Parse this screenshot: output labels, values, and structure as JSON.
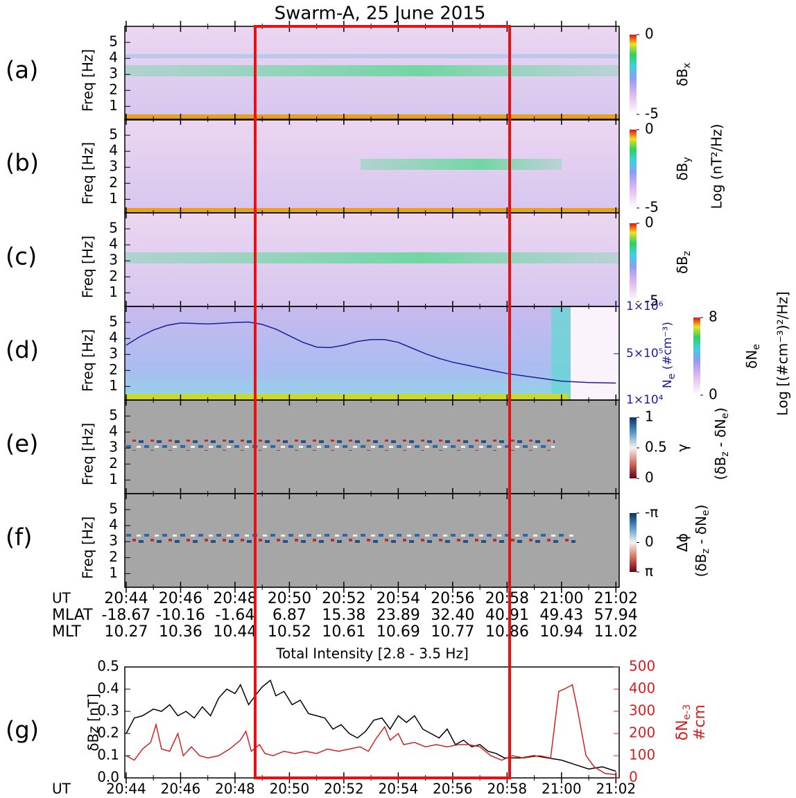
{
  "title": "Swarm-A,  25 June 2015",
  "time_axis": {
    "x_label": "UT",
    "xlim": [
      43.95,
      62.12
    ],
    "xticks": [
      {
        "value": 44,
        "label": "20:44"
      },
      {
        "value": 46,
        "label": "20:46"
      },
      {
        "value": 48,
        "label": "20:48"
      },
      {
        "value": 50,
        "label": "20:50"
      },
      {
        "value": 52,
        "label": "20:52"
      },
      {
        "value": 54,
        "label": "20:54"
      },
      {
        "value": 56,
        "label": "20:56"
      },
      {
        "value": 58,
        "label": "20:58"
      },
      {
        "value": 60,
        "label": "21:00"
      },
      {
        "value": 62,
        "label": "21:02"
      }
    ],
    "minor_xticks": [
      45,
      47,
      49,
      51,
      53,
      55,
      57,
      59,
      61
    ],
    "rows": [
      {
        "label": "MLAT",
        "values": [
          "-18.67",
          "-10.16",
          "-1.64",
          "6.87",
          "15.38",
          "23.89",
          "32.40",
          "40.91",
          "49.43",
          "57.94"
        ]
      },
      {
        "label": "MLT",
        "values": [
          "10.27",
          "10.36",
          "10.44",
          "10.52",
          "10.61",
          "10.69",
          "10.77",
          "10.86",
          "10.94",
          "11.02"
        ]
      }
    ]
  },
  "side_labels": {
    "magnetic": "Log (nT²/Hz)",
    "density": "Log [(#cm⁻³)²/Hz]",
    "pair": [
      "(δB",
      "z",
      " - δN",
      "e",
      ")"
    ]
  },
  "chart_data": [
    {
      "type": "heatmap",
      "label": "(a)",
      "ylabel": "Freq [Hz]",
      "ylim": [
        0.15,
        6.0
      ],
      "yticks": [
        1,
        2,
        3,
        4,
        5
      ],
      "palette": "rainbow",
      "colorbar": {
        "label": [
          "δB",
          "x"
        ],
        "lim": [
          -5,
          0
        ],
        "ticks": [
          0,
          -5
        ]
      }
    },
    {
      "type": "heatmap",
      "label": "(b)",
      "ylabel": "Freq [Hz]",
      "ylim": [
        0.15,
        6.0
      ],
      "yticks": [
        1,
        2,
        3,
        4,
        5
      ],
      "palette": "rainbow",
      "colorbar": {
        "label": [
          "δB",
          "y"
        ],
        "lim": [
          -5,
          0
        ],
        "ticks": [
          0,
          -5
        ]
      }
    },
    {
      "type": "heatmap",
      "label": "(c)",
      "ylabel": "Freq [Hz]",
      "ylim": [
        0.15,
        6.0
      ],
      "yticks": [
        1,
        2,
        3,
        4,
        5
      ],
      "palette": "rainbow",
      "colorbar": {
        "label": [
          "δB",
          "z"
        ],
        "lim": [
          -5,
          0
        ],
        "ticks": [
          0,
          -5
        ]
      }
    },
    {
      "type": "heatmap",
      "label": "(d)",
      "ylabel": "Freq [Hz]",
      "ylim": [
        0.15,
        6.0
      ],
      "yticks": [
        1,
        2,
        3,
        4,
        5
      ],
      "palette": "rainbow",
      "colorbar": {
        "label": [
          "δN",
          "e"
        ],
        "lim": [
          0,
          8
        ],
        "ticks": [
          8,
          0
        ]
      },
      "y2label": [
        "N",
        "e",
        " (#cm⁻³)"
      ],
      "y2lim": [
        10000,
        1000000
      ],
      "y2ticks": [
        {
          "value": 1000000,
          "label": "1×10⁶"
        },
        {
          "value": 500000,
          "label": "5×10⁵"
        },
        {
          "value": 10000,
          "label": "1×10⁴"
        }
      ],
      "series": [
        {
          "axis": "y2",
          "color": "#1c1c9c",
          "x": [
            44.0,
            44.5,
            45.0,
            45.5,
            46.0,
            46.5,
            47.0,
            47.5,
            48.0,
            48.5,
            49.0,
            49.5,
            50.0,
            50.5,
            51.0,
            51.5,
            52.0,
            52.5,
            53.0,
            53.5,
            54.0,
            54.5,
            55.0,
            55.5,
            56.0,
            56.5,
            57.0,
            57.5,
            58.0,
            58.5,
            59.0,
            59.5,
            60.0,
            61.0,
            62.0
          ],
          "values": [
            590000,
            680000,
            750000,
            800000,
            825000,
            820000,
            815000,
            822000,
            830000,
            835000,
            810000,
            760000,
            690000,
            620000,
            570000,
            565000,
            590000,
            630000,
            650000,
            650000,
            620000,
            560000,
            500000,
            450000,
            410000,
            380000,
            350000,
            320000,
            290000,
            270000,
            250000,
            230000,
            210000,
            195000,
            190000
          ]
        }
      ]
    },
    {
      "type": "heatmap",
      "label": "(e)",
      "ylabel": "Freq [Hz]",
      "ylim": [
        0.15,
        6.0
      ],
      "yticks": [
        1,
        2,
        3,
        4,
        5
      ],
      "palette": "diverging",
      "colorbar": {
        "label": [
          "γ"
        ],
        "lim": [
          0,
          1
        ],
        "ticks": [
          1,
          0.5,
          0
        ]
      }
    },
    {
      "type": "heatmap",
      "label": "(f)",
      "ylabel": "Freq [Hz]",
      "ylim": [
        0.15,
        6.0
      ],
      "yticks": [
        1,
        2,
        3,
        4,
        5
      ],
      "palette": "diverging",
      "colorbar": {
        "label": [
          "Δϕ"
        ],
        "lim": [
          3.14159,
          -3.14159
        ],
        "ticks": [
          {
            "value": -3.14159,
            "label": "-π"
          },
          0,
          {
            "value": 3.14159,
            "label": "π"
          }
        ]
      }
    },
    {
      "type": "line",
      "label": "(g)",
      "title": "Total Intensity [2.8 - 3.5 Hz]",
      "xlabel": "UT",
      "ylabel": "δBz [nT]",
      "y2label": [
        "δN",
        "e-3"
      ],
      "y2label_line2": "#cm",
      "ylim": [
        0,
        0.5
      ],
      "yticks": [
        {
          "value": 0,
          "label": "0.0"
        },
        0.1,
        0.2,
        0.3,
        0.4,
        0.5
      ],
      "y2lim": [
        0,
        500
      ],
      "y2ticks": [
        0,
        100,
        200,
        300,
        400,
        500
      ],
      "y2color": "#d42020",
      "series": [
        {
          "color": "#000000",
          "x": [
            44.0,
            44.3,
            44.6,
            45.0,
            45.3,
            45.6,
            45.9,
            46.2,
            46.5,
            46.8,
            47.1,
            47.4,
            47.7,
            48.0,
            48.2,
            48.5,
            48.8,
            49.0,
            49.3,
            49.5,
            49.8,
            50.1,
            50.4,
            50.7,
            51.0,
            51.3,
            51.6,
            51.9,
            52.2,
            52.5,
            52.8,
            53.1,
            53.4,
            53.7,
            54.0,
            54.3,
            54.6,
            54.9,
            55.2,
            55.5,
            55.8,
            56.1,
            56.4,
            56.7,
            57.0,
            57.3,
            57.6,
            57.9,
            58.5,
            59.0,
            59.5,
            60.0,
            60.5,
            61.0,
            61.5,
            62.0
          ],
          "values": [
            0.2,
            0.27,
            0.28,
            0.31,
            0.3,
            0.33,
            0.28,
            0.3,
            0.27,
            0.32,
            0.28,
            0.36,
            0.4,
            0.38,
            0.42,
            0.33,
            0.38,
            0.41,
            0.44,
            0.37,
            0.39,
            0.33,
            0.35,
            0.29,
            0.28,
            0.27,
            0.22,
            0.24,
            0.2,
            0.18,
            0.21,
            0.26,
            0.27,
            0.22,
            0.28,
            0.25,
            0.28,
            0.22,
            0.2,
            0.18,
            0.22,
            0.15,
            0.17,
            0.14,
            0.15,
            0.12,
            0.11,
            0.09,
            0.09,
            0.1,
            0.09,
            0.08,
            0.06,
            0.04,
            0.05,
            0.03
          ]
        },
        {
          "color": "#d42020",
          "axis": "y2",
          "x": [
            44.0,
            44.3,
            44.6,
            44.9,
            45.1,
            45.3,
            45.6,
            45.9,
            46.1,
            46.4,
            46.7,
            47.0,
            47.4,
            47.8,
            48.2,
            48.4,
            48.6,
            48.9,
            49.1,
            49.4,
            49.8,
            50.2,
            50.6,
            51.0,
            51.4,
            51.8,
            52.2,
            52.6,
            52.9,
            53.2,
            53.5,
            53.7,
            54.0,
            54.2,
            54.6,
            55.0,
            55.4,
            55.8,
            56.2,
            56.6,
            57.0,
            57.4,
            57.8,
            58.2,
            58.6,
            59.2,
            59.6,
            59.9,
            60.1,
            60.4,
            60.6,
            60.9,
            61.2,
            61.6,
            62.0
          ],
          "values": [
            100,
            80,
            130,
            160,
            240,
            130,
            120,
            200,
            100,
            140,
            100,
            90,
            100,
            130,
            170,
            210,
            120,
            150,
            110,
            100,
            120,
            110,
            120,
            110,
            130,
            120,
            130,
            140,
            120,
            180,
            230,
            170,
            200,
            150,
            160,
            140,
            150,
            140,
            150,
            150,
            140,
            100,
            80,
            100,
            90,
            100,
            90,
            390,
            400,
            420,
            300,
            100,
            50,
            20,
            15
          ]
        }
      ]
    }
  ]
}
